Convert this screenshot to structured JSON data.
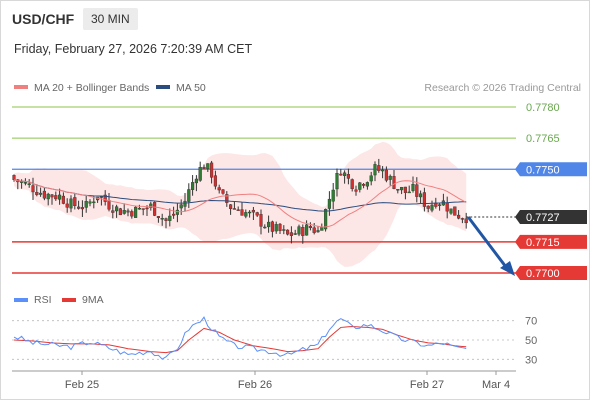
{
  "header": {
    "pair": "USD/CHF",
    "timeframe": "30 MIN",
    "timestamp": "Friday, February 27, 2026 7:20:39 AM CET"
  },
  "legend": {
    "ma20": "MA 20 + Bollinger Bands",
    "ma50": "MA 50",
    "credit": "Research © 2026 Trading Central",
    "rsi": "RSI",
    "rsi_ma": "9MA"
  },
  "colors": {
    "candle_up": "#2e7d32",
    "candle_down": "#d32f2f",
    "ma20": "#f08080",
    "bollinger_fill": "#fde3e3",
    "ma50": "#2b4c7e",
    "resistance": "#8bc34a",
    "pivot": "#4f86e8",
    "support": "#e53935",
    "current": "#333333",
    "rsi": "#5b8ff9",
    "rsi_ma": "#e53935"
  },
  "chart_data": {
    "type": "candlestick",
    "title": "USD/CHF 30 MIN",
    "price_axis": {
      "min": 0.77,
      "max": 0.778
    },
    "levels": [
      {
        "label": "0.7780",
        "value": 0.778,
        "kind": "resistance"
      },
      {
        "label": "0.7765",
        "value": 0.7765,
        "kind": "resistance"
      },
      {
        "label": "0.7750",
        "value": 0.775,
        "kind": "pivot"
      },
      {
        "label": "0.7727",
        "value": 0.7727,
        "kind": "current"
      },
      {
        "label": "0.7715",
        "value": 0.7715,
        "kind": "support"
      },
      {
        "label": "0.7700",
        "value": 0.77,
        "kind": "support"
      }
    ],
    "x_labels": [
      "Feb 25",
      "Feb 26",
      "Feb 27",
      "Mar 4"
    ],
    "close_path": [
      [
        0,
        0.7745
      ],
      [
        4,
        0.7742
      ],
      [
        8,
        0.7738
      ],
      [
        12,
        0.7737
      ],
      [
        15,
        0.7733
      ],
      [
        19,
        0.7732
      ],
      [
        22,
        0.7738
      ],
      [
        25,
        0.7733
      ],
      [
        28,
        0.773
      ],
      [
        32,
        0.773
      ],
      [
        36,
        0.7732
      ],
      [
        40,
        0.7725
      ],
      [
        42,
        0.7728
      ],
      [
        45,
        0.7735
      ],
      [
        48,
        0.7748
      ],
      [
        50,
        0.7752
      ],
      [
        52,
        0.7748
      ],
      [
        54,
        0.7738
      ],
      [
        57,
        0.7732
      ],
      [
        60,
        0.773
      ],
      [
        64,
        0.7726
      ],
      [
        67,
        0.7722
      ],
      [
        70,
        0.772
      ],
      [
        72,
        0.7718
      ],
      [
        75,
        0.772
      ],
      [
        78,
        0.7722
      ],
      [
        80,
        0.772
      ],
      [
        82,
        0.773
      ],
      [
        84,
        0.7742
      ],
      [
        86,
        0.775
      ],
      [
        88,
        0.7745
      ],
      [
        90,
        0.7742
      ],
      [
        93,
        0.7746
      ],
      [
        95,
        0.775
      ],
      [
        97,
        0.7749
      ],
      [
        99,
        0.7745
      ],
      [
        101,
        0.7741
      ],
      [
        103,
        0.7739
      ],
      [
        105,
        0.774
      ],
      [
        107,
        0.7736
      ],
      [
        109,
        0.7732
      ],
      [
        111,
        0.7735
      ],
      [
        113,
        0.7734
      ],
      [
        115,
        0.773
      ],
      [
        117,
        0.7728
      ],
      [
        119,
        0.7727
      ]
    ],
    "projection": {
      "from": 0.7727,
      "to": 0.77
    },
    "rsi": {
      "axis": {
        "min": 20,
        "max": 80
      },
      "ticks": [
        70,
        50,
        30
      ],
      "values": [
        [
          0,
          54
        ],
        [
          5,
          47
        ],
        [
          10,
          45
        ],
        [
          15,
          43
        ],
        [
          20,
          48
        ],
        [
          25,
          42
        ],
        [
          30,
          35
        ],
        [
          36,
          39
        ],
        [
          40,
          30
        ],
        [
          43,
          42
        ],
        [
          46,
          62
        ],
        [
          50,
          72
        ],
        [
          54,
          53
        ],
        [
          58,
          44
        ],
        [
          63,
          41
        ],
        [
          68,
          38
        ],
        [
          72,
          34
        ],
        [
          76,
          40
        ],
        [
          80,
          45
        ],
        [
          83,
          62
        ],
        [
          86,
          72
        ],
        [
          89,
          63
        ],
        [
          93,
          66
        ],
        [
          97,
          60
        ],
        [
          101,
          52
        ],
        [
          105,
          48
        ],
        [
          109,
          44
        ],
        [
          113,
          47
        ],
        [
          116,
          42
        ],
        [
          119,
          41
        ]
      ],
      "ma_values": [
        [
          0,
          50
        ],
        [
          5,
          49
        ],
        [
          10,
          47
        ],
        [
          15,
          46
        ],
        [
          20,
          46
        ],
        [
          25,
          45
        ],
        [
          30,
          41
        ],
        [
          36,
          38
        ],
        [
          40,
          37
        ],
        [
          43,
          39
        ],
        [
          46,
          50
        ],
        [
          50,
          62
        ],
        [
          54,
          58
        ],
        [
          58,
          50
        ],
        [
          63,
          44
        ],
        [
          68,
          41
        ],
        [
          72,
          38
        ],
        [
          76,
          39
        ],
        [
          80,
          41
        ],
        [
          83,
          53
        ],
        [
          86,
          63
        ],
        [
          89,
          64
        ],
        [
          93,
          63
        ],
        [
          97,
          61
        ],
        [
          101,
          55
        ],
        [
          105,
          50
        ],
        [
          109,
          47
        ],
        [
          113,
          46
        ],
        [
          116,
          44
        ],
        [
          119,
          43
        ]
      ]
    }
  }
}
